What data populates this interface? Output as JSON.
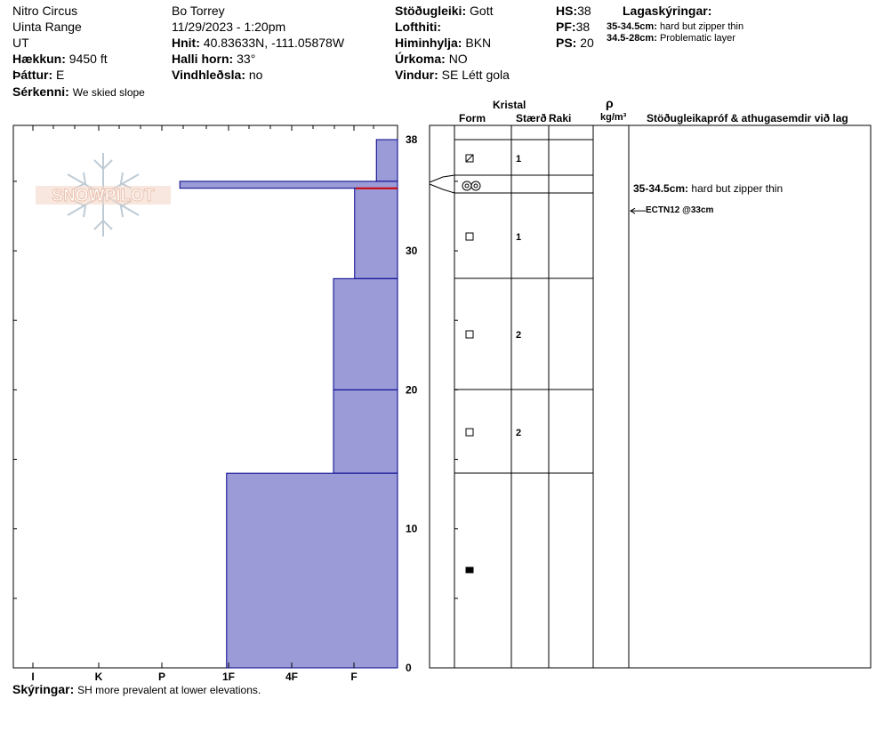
{
  "header": {
    "location": "Nitro Circus",
    "range": "Uinta Range",
    "state": "UT",
    "elevation_label": "Hækkun:",
    "elevation_value": "9450 ft",
    "aspect_label": "Þáttur:",
    "aspect_value": "E",
    "features_label": "Sérkenni:",
    "features_value": "We skied slope",
    "observer": "Bo Torrey",
    "datetime": "11/29/2023 - 1:20pm",
    "coords_label": "Hnit:",
    "coords_value": "40.83633N, -111.05878W",
    "slope_label": "Halli horn:",
    "slope_value": "33°",
    "wind_loading_label": "Vindhleðsla:",
    "wind_loading_value": "no",
    "stability_label": "Stöðugleiki:",
    "stability_value": "Gott",
    "air_temp_label": "Lofthiti:",
    "air_temp_value": "",
    "sky_label": "Himinhylja:",
    "sky_value": "BKN",
    "precip_label": "Úrkoma:",
    "precip_value": "NO",
    "wind_label": "Vindur:",
    "wind_value": "SE Létt gola",
    "hs_label": "HS:",
    "hs_value": "38",
    "pf_label": "PF:",
    "pf_value": "38",
    "ps_label": "PS:",
    "ps_value": "20",
    "legend_title": "Lagaskýringar:",
    "legend_items": [
      {
        "range": "35-34.5cm:",
        "text": "hard but zipper thin"
      },
      {
        "range": "34.5-28cm:",
        "text": "Problematic layer"
      }
    ]
  },
  "logo_text": "SNOWPILOT",
  "columns": {
    "kristal": "Kristal",
    "form": "Form",
    "size": "Stærð",
    "moisture": "Raki",
    "rho": "ρ",
    "density_unit": "kg/m³",
    "comments": "Stöðugleikapróf & athugasemdir við lag"
  },
  "layer_comments": [
    {
      "range": "35-34.5cm:",
      "text": "hard but zipper thin"
    }
  ],
  "test_result": "ECTN12 @33cm",
  "footer": {
    "label": "Skýringar:",
    "text": "SH more prevalent at lower elevations."
  },
  "colors": {
    "layer_fill": "#9b9bd8",
    "layer_stroke": "#00008b",
    "critical_line": "#cc0000",
    "logo_text": "#e8b9a3",
    "logo_flake": "#b9c6d0"
  },
  "chart_data": {
    "type": "bar",
    "orientation": "horizontal-hardness-profile",
    "hardness_ticks": [
      "I",
      "K",
      "P",
      "1F",
      "4F",
      "F"
    ],
    "height_ticks": [
      0,
      10,
      20,
      30,
      38
    ],
    "ylim": [
      0,
      38
    ],
    "layers": [
      {
        "top": 38,
        "bottom": 35,
        "hardness": 0.33,
        "form_icon": "faceted-rounded-icon",
        "size": "1"
      },
      {
        "top": 35,
        "bottom": 34.5,
        "hardness": 3.4,
        "form_icon": "surface-hoar-icon",
        "size": ""
      },
      {
        "top": 34.5,
        "bottom": 28,
        "hardness": 0.67,
        "form_icon": "faceted-icon",
        "size": "1"
      },
      {
        "top": 28,
        "bottom": 20,
        "hardness": 1.0,
        "form_icon": "faceted-icon",
        "size": "2"
      },
      {
        "top": 20,
        "bottom": 14,
        "hardness": 1.0,
        "form_icon": "faceted-icon",
        "size": "2"
      },
      {
        "top": 14,
        "bottom": 0,
        "hardness": 2.67,
        "form_icon": "melt-forms-icon",
        "size": ""
      }
    ],
    "critical_layer_height": 34.5,
    "test_height": 33
  }
}
